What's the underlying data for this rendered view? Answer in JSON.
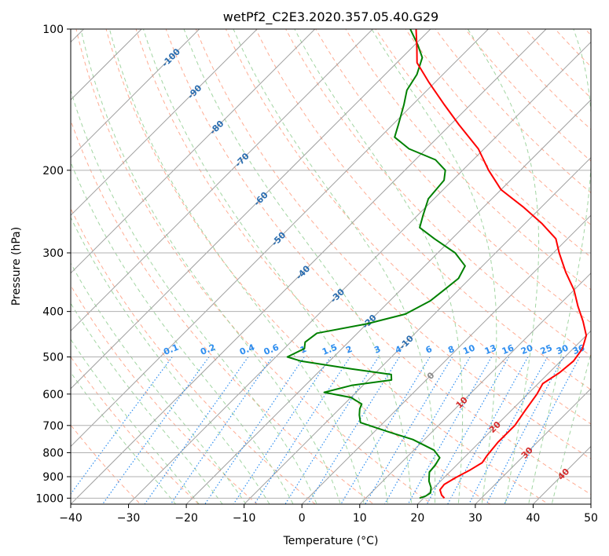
{
  "chart_data": {
    "type": "skew-t log-p",
    "title": "wetPf2_C2E3.2020.357.05.40.G29",
    "xlabel": "Temperature (°C)",
    "ylabel": "Pressure (hPa)",
    "xlim": [
      -40,
      50
    ],
    "ylim_pressure": [
      1030,
      100
    ],
    "y_scale": "log",
    "xticks": [
      -40,
      -30,
      -20,
      -10,
      0,
      10,
      20,
      30,
      40,
      50
    ],
    "xtick_labels": [
      "−40",
      "−30",
      "−20",
      "−10",
      "0",
      "10",
      "20",
      "30",
      "40",
      "50"
    ],
    "yticks": [
      1000,
      900,
      800,
      700,
      600,
      500,
      400,
      300,
      200,
      100
    ],
    "ytick_labels": [
      "1000",
      "900",
      "800",
      "700",
      "600",
      "500",
      "400",
      "300",
      "200",
      "100"
    ],
    "grid": true,
    "colors": {
      "temperature": "#ff0000",
      "dewpoint": "#008000",
      "isotherm": "#a0a0a0",
      "dry_adiabat": "#ff9e80",
      "moist_adiabat": "#98d098",
      "mixing_ratio": "#2e8ef0",
      "isotherm_label": "#2a6db0",
      "warm_label": "#d42a2a",
      "zero_label": "#8a8a8a",
      "mixing_label": "#2e8ef0"
    },
    "isotherm_labels": [
      {
        "t": -100,
        "p": 115
      },
      {
        "t": -90,
        "p": 136
      },
      {
        "t": -80,
        "p": 162
      },
      {
        "t": -70,
        "p": 190
      },
      {
        "t": -60,
        "p": 230
      },
      {
        "t": -50,
        "p": 280
      },
      {
        "t": -40,
        "p": 330
      },
      {
        "t": -30,
        "p": 370
      },
      {
        "t": -20,
        "p": 420
      },
      {
        "t": -10,
        "p": 465
      },
      {
        "t": 0,
        "p": 548
      },
      {
        "t": 10,
        "p": 625
      },
      {
        "t": 20,
        "p": 705
      },
      {
        "t": 30,
        "p": 800
      },
      {
        "t": 40,
        "p": 888
      }
    ],
    "mixing_ratio_labels": [
      "0.1",
      "0.2",
      "0.4",
      "0.6",
      "1",
      "1.5",
      "2",
      "3",
      "4",
      "6",
      "8",
      "10",
      "13",
      "16",
      "20",
      "25",
      "30",
      "36"
    ],
    "temperature_profile": [
      {
        "p": 1000,
        "t": 23.6
      },
      {
        "p": 985,
        "t": 22.6
      },
      {
        "p": 960,
        "t": 21.4
      },
      {
        "p": 935,
        "t": 21.2
      },
      {
        "p": 905,
        "t": 22.0
      },
      {
        "p": 870,
        "t": 23.2
      },
      {
        "p": 840,
        "t": 24.0
      },
      {
        "p": 810,
        "t": 23.6
      },
      {
        "p": 760,
        "t": 23.2
      },
      {
        "p": 700,
        "t": 23.2
      },
      {
        "p": 650,
        "t": 22.4
      },
      {
        "p": 600,
        "t": 21.6
      },
      {
        "p": 570,
        "t": 20.8
      },
      {
        "p": 540,
        "t": 21.8
      },
      {
        "p": 510,
        "t": 22.2
      },
      {
        "p": 480,
        "t": 21.6
      },
      {
        "p": 450,
        "t": 20.0
      },
      {
        "p": 420,
        "t": 17.0
      },
      {
        "p": 390,
        "t": 13.5
      },
      {
        "p": 360,
        "t": 10.0
      },
      {
        "p": 330,
        "t": 5.5
      },
      {
        "p": 300,
        "t": 1.0
      },
      {
        "p": 280,
        "t": -2.0
      },
      {
        "p": 260,
        "t": -7.0
      },
      {
        "p": 240,
        "t": -13.0
      },
      {
        "p": 220,
        "t": -20.0
      },
      {
        "p": 200,
        "t": -25.5
      },
      {
        "p": 180,
        "t": -31.0
      },
      {
        "p": 160,
        "t": -38.5
      },
      {
        "p": 145,
        "t": -44.5
      },
      {
        "p": 130,
        "t": -51.0
      },
      {
        "p": 118,
        "t": -56.5
      },
      {
        "p": 110,
        "t": -59.0
      },
      {
        "p": 100,
        "t": -62.5
      }
    ],
    "dewpoint_profile": [
      {
        "p": 1000,
        "t": 19.3
      },
      {
        "p": 990,
        "t": 20.0
      },
      {
        "p": 975,
        "t": 20.3
      },
      {
        "p": 950,
        "t": 19.5
      },
      {
        "p": 920,
        "t": 18.0
      },
      {
        "p": 880,
        "t": 16.5
      },
      {
        "p": 850,
        "t": 16.3
      },
      {
        "p": 820,
        "t": 15.8
      },
      {
        "p": 790,
        "t": 13.5
      },
      {
        "p": 750,
        "t": 8.0
      },
      {
        "p": 720,
        "t": 2.0
      },
      {
        "p": 690,
        "t": -4.0
      },
      {
        "p": 665,
        "t": -5.5
      },
      {
        "p": 645,
        "t": -6.5
      },
      {
        "p": 630,
        "t": -7.0
      },
      {
        "p": 610,
        "t": -10.0
      },
      {
        "p": 595,
        "t": -15.5
      },
      {
        "p": 575,
        "t": -12.0
      },
      {
        "p": 560,
        "t": -6.0
      },
      {
        "p": 545,
        "t": -7.0
      },
      {
        "p": 530,
        "t": -15.0
      },
      {
        "p": 510,
        "t": -25.0
      },
      {
        "p": 500,
        "t": -28.0
      },
      {
        "p": 480,
        "t": -26.5
      },
      {
        "p": 465,
        "t": -27.5
      },
      {
        "p": 445,
        "t": -27.0
      },
      {
        "p": 425,
        "t": -20.0
      },
      {
        "p": 405,
        "t": -15.0
      },
      {
        "p": 380,
        "t": -13.0
      },
      {
        "p": 360,
        "t": -12.5
      },
      {
        "p": 340,
        "t": -12.0
      },
      {
        "p": 320,
        "t": -13.0
      },
      {
        "p": 300,
        "t": -17.0
      },
      {
        "p": 280,
        "t": -23.0
      },
      {
        "p": 265,
        "t": -27.5
      },
      {
        "p": 250,
        "t": -29.0
      },
      {
        "p": 230,
        "t": -31.0
      },
      {
        "p": 210,
        "t": -31.5
      },
      {
        "p": 200,
        "t": -33.0
      },
      {
        "p": 190,
        "t": -36.5
      },
      {
        "p": 180,
        "t": -43.0
      },
      {
        "p": 170,
        "t": -47.5
      },
      {
        "p": 160,
        "t": -49.0
      },
      {
        "p": 145,
        "t": -51.5
      },
      {
        "p": 135,
        "t": -53.5
      },
      {
        "p": 125,
        "t": -54.5
      },
      {
        "p": 115,
        "t": -56.5
      },
      {
        "p": 108,
        "t": -59.5
      },
      {
        "p": 100,
        "t": -63.5
      }
    ]
  }
}
